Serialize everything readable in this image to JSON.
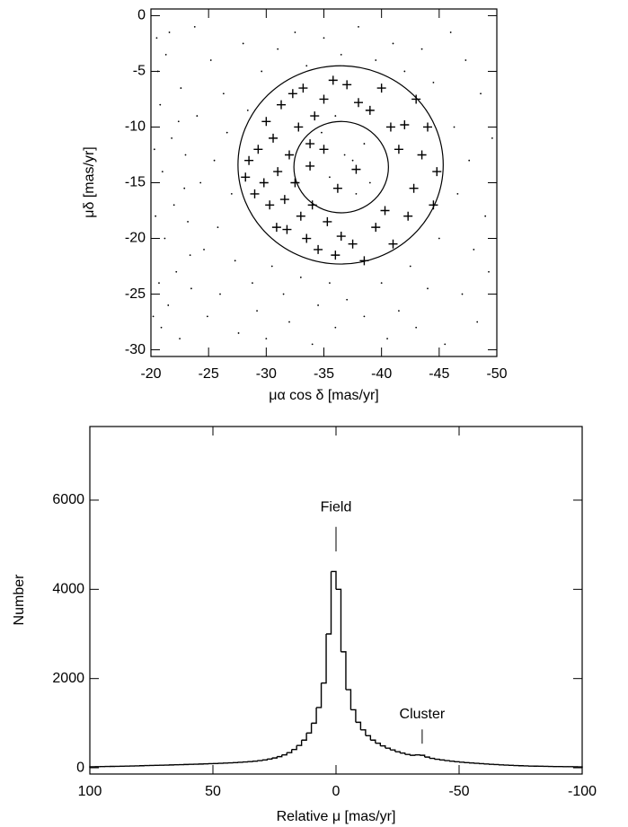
{
  "chart_data": [
    {
      "type": "scatter",
      "xlabel": "μα cos δ [mas/yr]",
      "ylabel": "μδ [mas/yr]",
      "xlim": [
        -20,
        -50
      ],
      "ylim": [
        -30.6,
        0.6
      ],
      "xticks": [
        -20,
        -25,
        -30,
        -35,
        -40,
        -45,
        -50
      ],
      "yticks": [
        0,
        -5,
        -10,
        -15,
        -20,
        -25,
        -30
      ],
      "color": "#000000",
      "field": {
        "x": [
          -20.5,
          -20.8,
          -21,
          -21.2,
          -21.5,
          -20.6,
          -21.8,
          -22,
          -22.2,
          -22.5,
          -20.9,
          -21.3,
          -22.6,
          -23,
          -23.2,
          -23.5,
          -23.8,
          -24,
          -24.3,
          -24.6,
          -24.9,
          -25.2,
          -25.5,
          -25.8,
          -26,
          -26.3,
          -26.6,
          -27,
          -27.3,
          -27.6,
          -28,
          -28.4,
          -28.8,
          -29.2,
          -29.6,
          -30,
          -30.5,
          -31,
          -31.5,
          -32,
          -32.5,
          -33,
          -33.5,
          -34,
          -34.5,
          -35,
          -35.5,
          -36,
          -36.5,
          -37,
          -37.5,
          -38,
          -38.5,
          -39,
          -39.5,
          -40,
          -40.5,
          -41,
          -41.5,
          -42,
          -42.5,
          -43,
          -43.5,
          -44,
          -44.5,
          -45,
          -45.5,
          -46,
          -46.3,
          -46.6,
          -47,
          -47.3,
          -47.6,
          -48,
          -48.3,
          -48.6,
          -49,
          -49.3,
          -49.6,
          -36.8,
          -35.5,
          -38.5,
          -34.8,
          -37.8,
          -36,
          -20.3,
          -20.4,
          -20.7,
          -21.6,
          -22.4,
          -22.9,
          -23.4,
          -20.2
        ],
        "y": [
          -2,
          -8,
          -14,
          -20,
          -26,
          -5,
          -11,
          -17,
          -23,
          -29,
          -28,
          -3.5,
          -6.5,
          -12.5,
          -18.5,
          -24.5,
          -1,
          -9,
          -15,
          -21,
          -27,
          -4,
          -13,
          -19,
          -25,
          -7,
          -10.5,
          -16,
          -22,
          -28.5,
          -2.5,
          -8.5,
          -24,
          -26.5,
          -5,
          -29,
          -22.5,
          -3,
          -25,
          -27.5,
          -1.5,
          -23.5,
          -4.5,
          -29.5,
          -26,
          -2,
          -24,
          -28,
          -3.5,
          -25.5,
          -13,
          -1,
          -27,
          -15,
          -4,
          -24,
          -29,
          -2.5,
          -26.5,
          -5,
          -22.5,
          -28,
          -3,
          -24.5,
          -6,
          -20,
          -29.5,
          -1.5,
          -10,
          -16,
          -25,
          -4,
          -13,
          -21,
          -27.5,
          -7,
          -18,
          -23,
          -11,
          -12.5,
          -14.5,
          -11.5,
          -10.5,
          -16,
          -9,
          -12,
          -18,
          -24,
          -1.5,
          -9.5,
          -15.5,
          -21.5,
          -27
        ]
      },
      "members": {
        "x": [
          -28.2,
          -28.5,
          -29,
          -29.3,
          -29.8,
          -30,
          -30.3,
          -30.6,
          -30.9,
          -31,
          -31.3,
          -31.6,
          -31.8,
          -32,
          -32.3,
          -32.5,
          -32.8,
          -33,
          -33.2,
          -33.5,
          -33.8,
          -34,
          -34.2,
          -34.5,
          -35,
          -35.3,
          -35.8,
          -36,
          -36.5,
          -37,
          -37.5,
          -38,
          -38.5,
          -39,
          -39.5,
          -40,
          -40.3,
          -40.8,
          -41,
          -41.5,
          -42,
          -42.3,
          -42.8,
          -43,
          -43.5,
          -44,
          -44.5,
          -44.8,
          -33.8,
          -36.2,
          -37.8,
          -35
        ],
        "y": [
          -14.5,
          -13,
          -16,
          -12,
          -15,
          -9.5,
          -17,
          -11,
          -19,
          -14,
          -8,
          -16.5,
          -19.2,
          -12.5,
          -7,
          -15,
          -10,
          -18,
          -6.5,
          -20,
          -11.5,
          -17,
          -9,
          -21,
          -7.5,
          -18.5,
          -5.8,
          -21.5,
          -19.8,
          -6.2,
          -20.5,
          -7.8,
          -22,
          -8.5,
          -19,
          -6.5,
          -17.5,
          -10,
          -20.5,
          -12,
          -9.8,
          -18,
          -15.5,
          -7.5,
          -12.5,
          -10,
          -17,
          -14,
          -13.5,
          -15.5,
          -13.8,
          -12
        ]
      },
      "circles": [
        {
          "x": -36.45,
          "y": -13.4,
          "r": 8.9
        },
        {
          "x": -36.5,
          "y": -13.6,
          "r": 4.1
        }
      ]
    },
    {
      "type": "histogram",
      "xlabel": "Relative μ [mas/yr]",
      "ylabel": "Number",
      "xlim": [
        100,
        -100
      ],
      "ylim": [
        -140,
        7650
      ],
      "xticks": [
        100,
        50,
        0,
        -50,
        -100
      ],
      "yticks": [
        0,
        2000,
        4000,
        6000
      ],
      "color": "#000000",
      "bins": [
        -100,
        -98,
        -96,
        -94,
        -92,
        -90,
        -88,
        -86,
        -84,
        -82,
        -80,
        -78,
        -76,
        -74,
        -72,
        -70,
        -68,
        -66,
        -64,
        -62,
        -60,
        -58,
        -56,
        -54,
        -52,
        -50,
        -48,
        -46,
        -44,
        -42,
        -40,
        -38,
        -36,
        -34,
        -32,
        -30,
        -28,
        -26,
        -24,
        -22,
        -20,
        -18,
        -16,
        -14,
        -12,
        -10,
        -8,
        -6,
        -4,
        -2,
        0,
        2,
        4,
        6,
        8,
        10,
        12,
        14,
        16,
        18,
        20,
        22,
        24,
        26,
        28,
        30,
        32,
        34,
        36,
        38,
        40,
        42,
        44,
        46,
        48,
        50,
        52,
        54,
        56,
        58,
        60,
        62,
        64,
        66,
        68,
        70,
        72,
        74,
        76,
        78,
        80,
        82,
        84,
        86,
        88,
        90,
        92,
        94,
        96,
        98,
        100
      ],
      "counts": [
        20,
        22,
        24,
        25,
        27,
        28,
        30,
        32,
        34,
        36,
        38,
        42,
        46,
        50,
        55,
        60,
        66,
        72,
        78,
        85,
        92,
        100,
        108,
        116,
        125,
        135,
        148,
        160,
        175,
        190,
        210,
        240,
        280,
        290,
        280,
        300,
        330,
        360,
        400,
        440,
        490,
        550,
        620,
        720,
        850,
        1020,
        1300,
        1750,
        2600,
        4000,
        4400,
        3000,
        1900,
        1350,
        1000,
        780,
        620,
        500,
        410,
        340,
        290,
        250,
        220,
        195,
        175,
        160,
        148,
        138,
        130,
        122,
        115,
        110,
        105,
        100,
        96,
        92,
        88,
        84,
        80,
        77,
        74,
        70,
        67,
        64,
        61,
        58,
        55,
        52,
        49,
        46,
        43,
        40,
        37,
        35,
        33,
        31,
        29,
        27,
        25,
        23
      ],
      "annotations": [
        {
          "text": "Field",
          "x": 0,
          "y": 5835,
          "marker": [
            4850,
            5400
          ]
        },
        {
          "text": "Cluster",
          "x": -35,
          "y": 1190,
          "marker": [
            540,
            860
          ]
        }
      ]
    }
  ]
}
